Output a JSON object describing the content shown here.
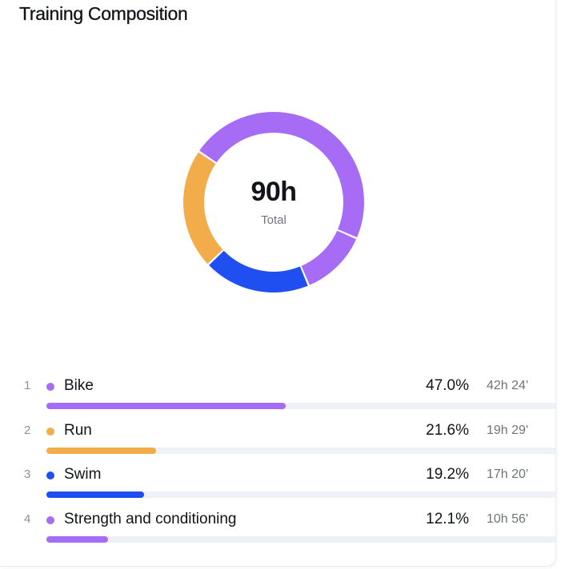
{
  "card": {
    "title": "Training Composition"
  },
  "chart_data": {
    "type": "pie",
    "donut": true,
    "center_value": "90h",
    "center_label": "Total",
    "series": [
      {
        "rank": "1",
        "name": "Bike",
        "percent": 47.0,
        "percent_label": "47.0%",
        "duration": "42h 24'",
        "color": "#a66cf5"
      },
      {
        "rank": "2",
        "name": "Run",
        "percent": 21.6,
        "percent_label": "21.6%",
        "duration": "19h 29'",
        "color": "#f2ad4a"
      },
      {
        "rank": "3",
        "name": "Swim",
        "percent": 19.2,
        "percent_label": "19.2%",
        "duration": "17h 20'",
        "color": "#1f4ff0"
      },
      {
        "rank": "4",
        "name": "Strength and conditioning",
        "percent": 12.1,
        "percent_label": "12.1%",
        "duration": "10h 56'",
        "color": "#a66cf5"
      }
    ]
  }
}
